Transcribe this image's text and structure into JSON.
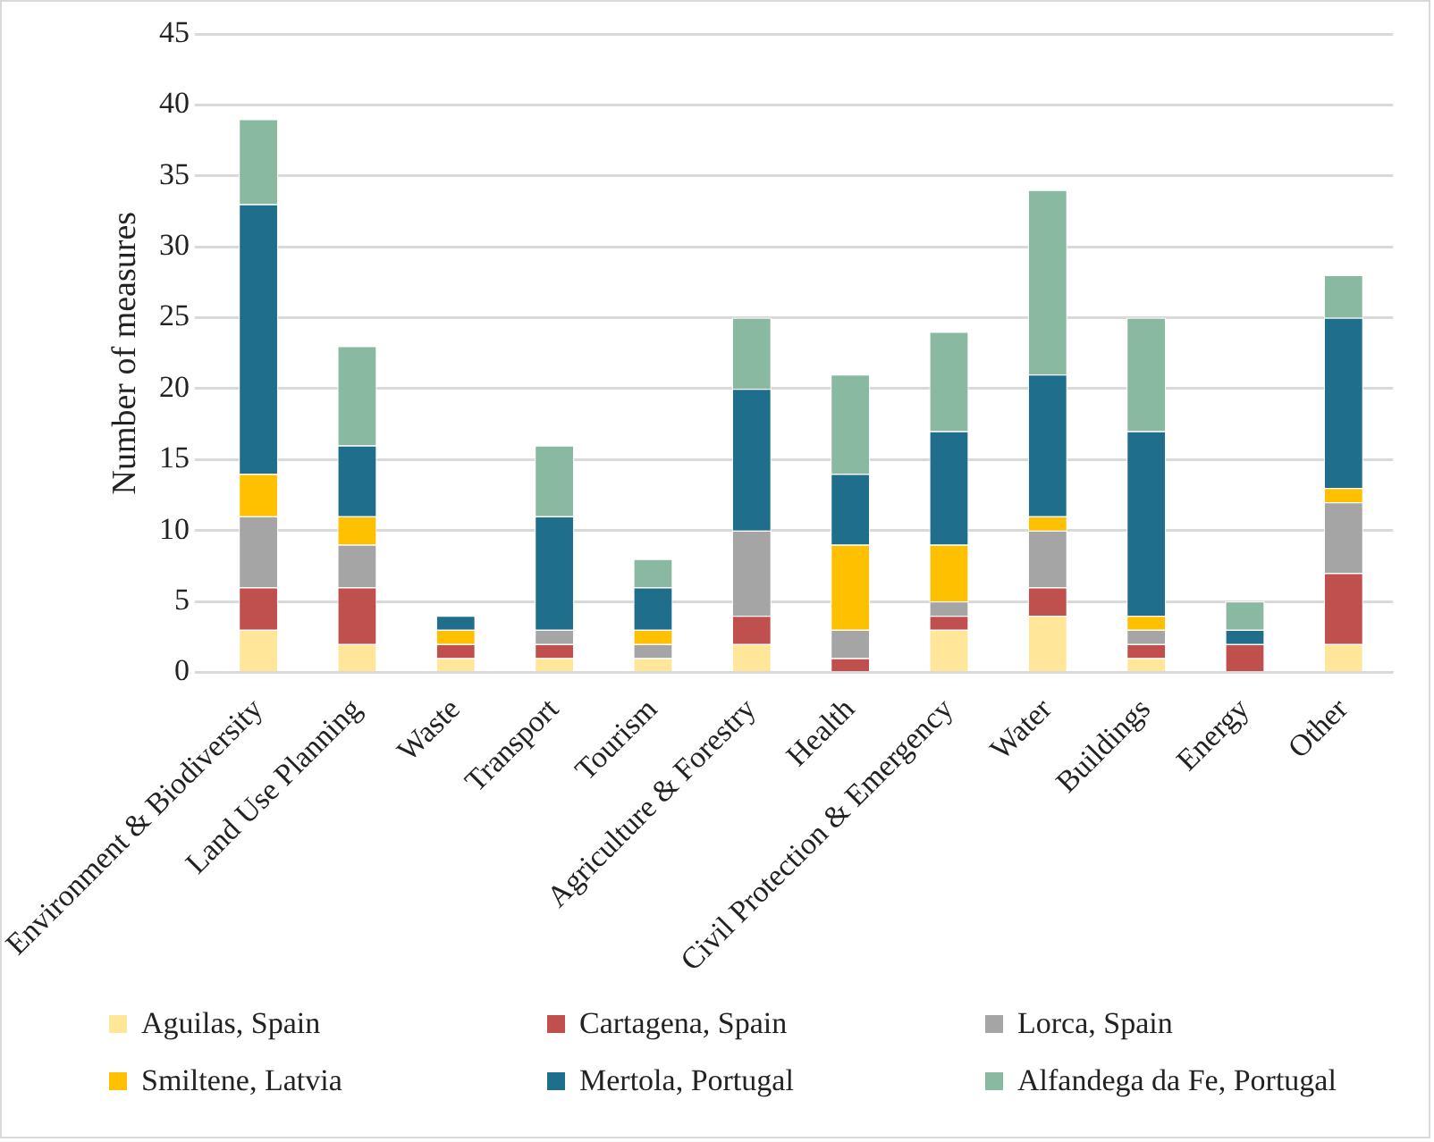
{
  "chart_data": {
    "type": "bar",
    "stacked": true,
    "ylabel": "Number of measures",
    "categories": [
      "Environment & Biodiversity",
      "Land Use Planning",
      "Waste",
      "Transport",
      "Tourism",
      "Agriculture & Forestry",
      "Health",
      "Civil Protection & Emergency",
      "Water",
      "Buildings",
      "Energy",
      "Other"
    ],
    "series": [
      {
        "name": "Aguilas, Spain",
        "color": "#ffe699",
        "values": [
          3,
          2,
          1,
          1,
          1,
          2,
          0,
          3,
          4,
          1,
          0,
          2
        ]
      },
      {
        "name": "Cartagena, Spain",
        "color": "#c0504d",
        "values": [
          3,
          4,
          1,
          1,
          0,
          2,
          1,
          1,
          2,
          1,
          2,
          5
        ]
      },
      {
        "name": "Lorca, Spain",
        "color": "#a5a5a5",
        "values": [
          5,
          3,
          0,
          1,
          1,
          6,
          2,
          1,
          4,
          1,
          0,
          5
        ]
      },
      {
        "name": "Smiltene, Latvia",
        "color": "#ffc000",
        "values": [
          3,
          2,
          1,
          0,
          1,
          0,
          6,
          4,
          1,
          1,
          0,
          1
        ]
      },
      {
        "name": "Mertola, Portugal",
        "color": "#1f6e8c",
        "values": [
          19,
          5,
          1,
          8,
          3,
          10,
          5,
          8,
          10,
          13,
          1,
          12
        ]
      },
      {
        "name": "Alfandega da Fe, Portugal",
        "color": "#8ab9a1",
        "values": [
          6,
          7,
          0,
          5,
          2,
          5,
          7,
          7,
          13,
          8,
          2,
          3
        ]
      }
    ],
    "ylim": [
      0,
      45
    ],
    "yticks": [
      0,
      5,
      10,
      15,
      20,
      25,
      30,
      35,
      40,
      45
    ],
    "grid": "y",
    "legend": "bottom"
  }
}
